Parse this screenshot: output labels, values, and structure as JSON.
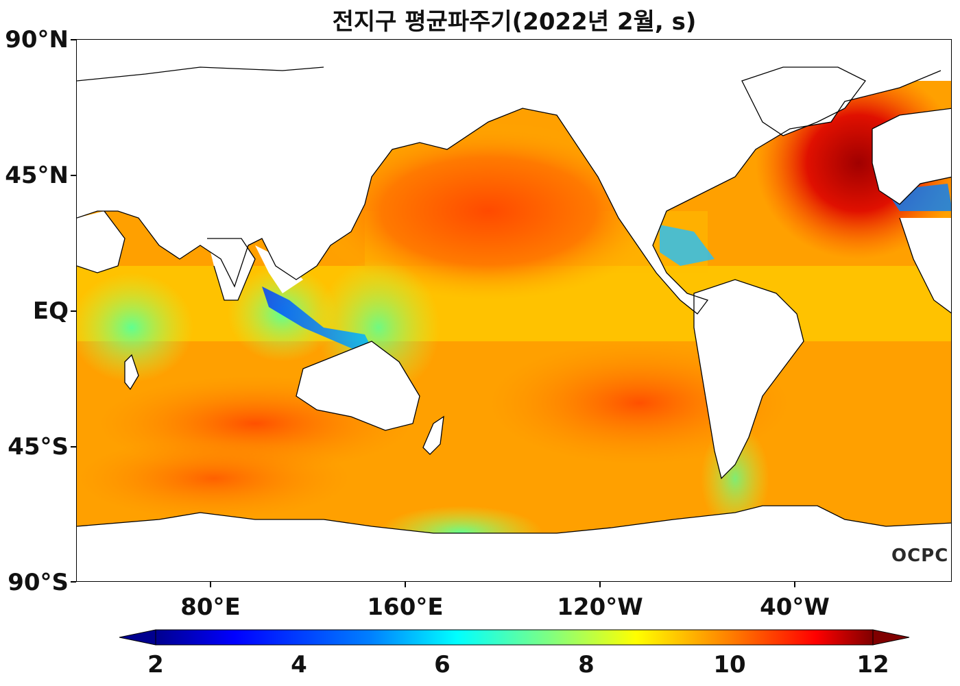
{
  "title": "전지구 평균파주기(2022년 2월, s)",
  "y_axis": {
    "ticks": [
      "90°N",
      "45°N",
      "EQ",
      "45°S",
      "90°S"
    ]
  },
  "x_axis": {
    "ticks": [
      "80°E",
      "160°E",
      "120°W",
      "40°W"
    ]
  },
  "colorbar": {
    "ticks": [
      "2",
      "4",
      "6",
      "8",
      "10",
      "12"
    ],
    "min": 2,
    "max": 12,
    "extend": "both",
    "colormap": "jet",
    "colors": [
      "#00008f",
      "#0000ff",
      "#0080ff",
      "#00ffff",
      "#80ff80",
      "#ffff00",
      "#ff8000",
      "#ff0000",
      "#800000"
    ]
  },
  "logo": "OCPC"
}
